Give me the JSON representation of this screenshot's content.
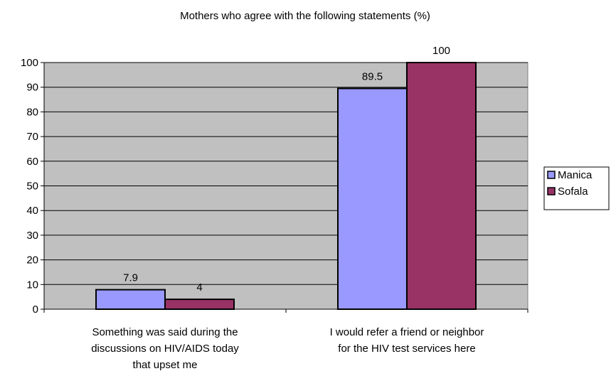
{
  "chart_data": {
    "type": "bar",
    "title": "Mothers who agree with the following statements (%)",
    "xlabel": "",
    "ylabel": "",
    "ylim": [
      0,
      100
    ],
    "ytick_step": 10,
    "grid": true,
    "legend_position": "right",
    "categories": [
      [
        "Something was said during the",
        "discussions on HIV/AIDS today",
        "that upset me"
      ],
      [
        "I would refer a friend or neighbor",
        "for the HIV test services here"
      ]
    ],
    "series": [
      {
        "name": "Manica",
        "values": [
          7.9,
          89.5
        ],
        "labels": [
          "7.9",
          "89.5"
        ],
        "color": "#9999ff"
      },
      {
        "name": "Sofala",
        "values": [
          4,
          100
        ],
        "labels": [
          "4",
          "100"
        ],
        "color": "#993366"
      }
    ],
    "plot_background": "#c0c0c0"
  }
}
